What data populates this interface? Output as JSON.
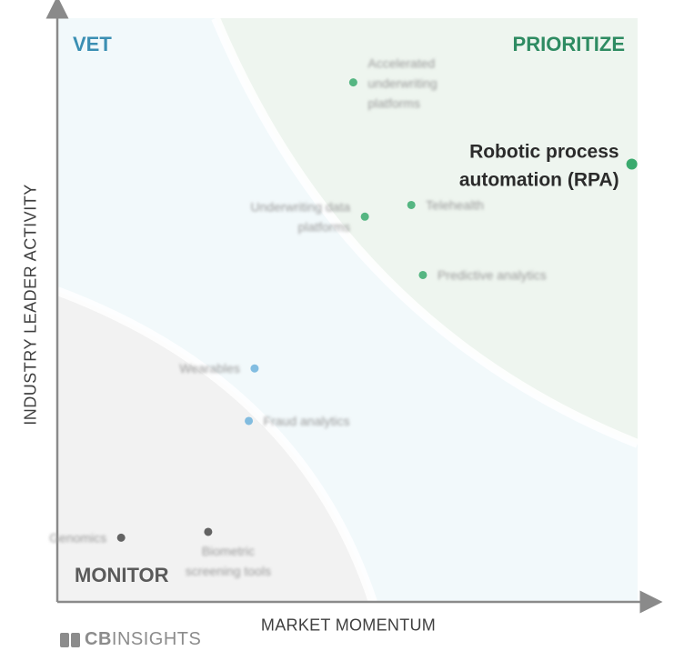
{
  "chart_data": {
    "type": "scatter",
    "xlabel": "MARKET MOMENTUM",
    "ylabel": "INDUSTRY LEADER ACTIVITY",
    "xlim": [
      0,
      100
    ],
    "ylim": [
      0,
      100
    ],
    "quadrants": [
      {
        "label": "VET",
        "color": "#3b8fb3"
      },
      {
        "label": "PRIORITIZE",
        "color": "#2e8b62"
      },
      {
        "label": "MONITOR",
        "color": "#5a5a5a"
      }
    ],
    "points": [
      {
        "label": "Robotic process automation (RPA)",
        "lines": [
          "Robotic process",
          "automation (RPA)"
        ],
        "x": 99,
        "y": 75,
        "group": "prioritize",
        "highlight": true
      },
      {
        "label": "Accelerated underwriting platforms",
        "lines": [
          "Accelerated",
          "underwriting",
          "platforms"
        ],
        "x": 51,
        "y": 89,
        "group": "prioritize",
        "highlight": false
      },
      {
        "label": "Telehealth",
        "lines": [
          "Telehealth"
        ],
        "x": 61,
        "y": 68,
        "group": "prioritize",
        "highlight": false
      },
      {
        "label": "Underwriting data platforms",
        "lines": [
          "Underwriting data",
          "platforms"
        ],
        "x": 53,
        "y": 66,
        "group": "prioritize",
        "highlight": false
      },
      {
        "label": "Predictive analytics",
        "lines": [
          "Predictive analytics"
        ],
        "x": 63,
        "y": 56,
        "group": "prioritize",
        "highlight": false
      },
      {
        "label": "Wearables",
        "lines": [
          "Wearables"
        ],
        "x": 34,
        "y": 40,
        "group": "vet",
        "highlight": false
      },
      {
        "label": "Fraud analytics",
        "lines": [
          "Fraud analytics"
        ],
        "x": 33,
        "y": 31,
        "group": "vet",
        "highlight": false
      },
      {
        "label": "Genomics",
        "lines": [
          "Genomics"
        ],
        "x": 11,
        "y": 11,
        "group": "monitor",
        "highlight": false
      },
      {
        "label": "Biometric screening tools",
        "lines": [
          "Biometric",
          "screening tools"
        ],
        "x": 26,
        "y": 12,
        "group": "monitor",
        "highlight": false
      }
    ],
    "group_colors": {
      "prioritize": "#3aaa6e",
      "vet": "#6fb3dc",
      "monitor": "#4a4a4a"
    },
    "grid": false
  },
  "brand": {
    "bold": "CB",
    "rest": "INSIGHTS"
  }
}
